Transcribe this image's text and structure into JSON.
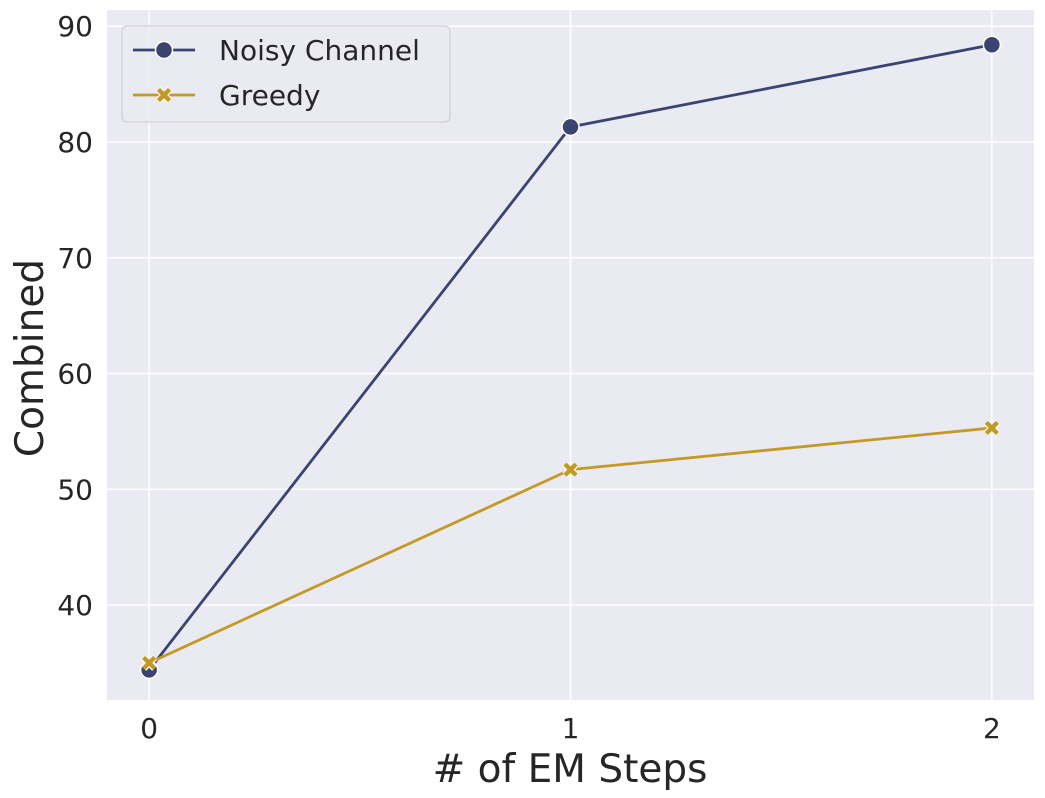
{
  "chart_data": {
    "type": "line",
    "x": [
      0,
      1,
      2
    ],
    "xticks": [
      "0",
      "1",
      "2"
    ],
    "xlabel": "# of EM Steps",
    "ylabel": "Combined",
    "xlim": [
      -0.1,
      2.1
    ],
    "ylim": [
      31.8,
      91.4
    ],
    "yticks": [
      40,
      50,
      60,
      70,
      80,
      90
    ],
    "grid": true,
    "legend": "top-left",
    "series": [
      {
        "name": "Noisy Channel",
        "values": [
          34.4,
          81.3,
          88.4
        ],
        "color": "#3b4371",
        "marker": "circle"
      },
      {
        "name": "Greedy",
        "values": [
          35.0,
          51.7,
          55.3
        ],
        "color": "#c39a28",
        "marker": "x"
      }
    ]
  }
}
